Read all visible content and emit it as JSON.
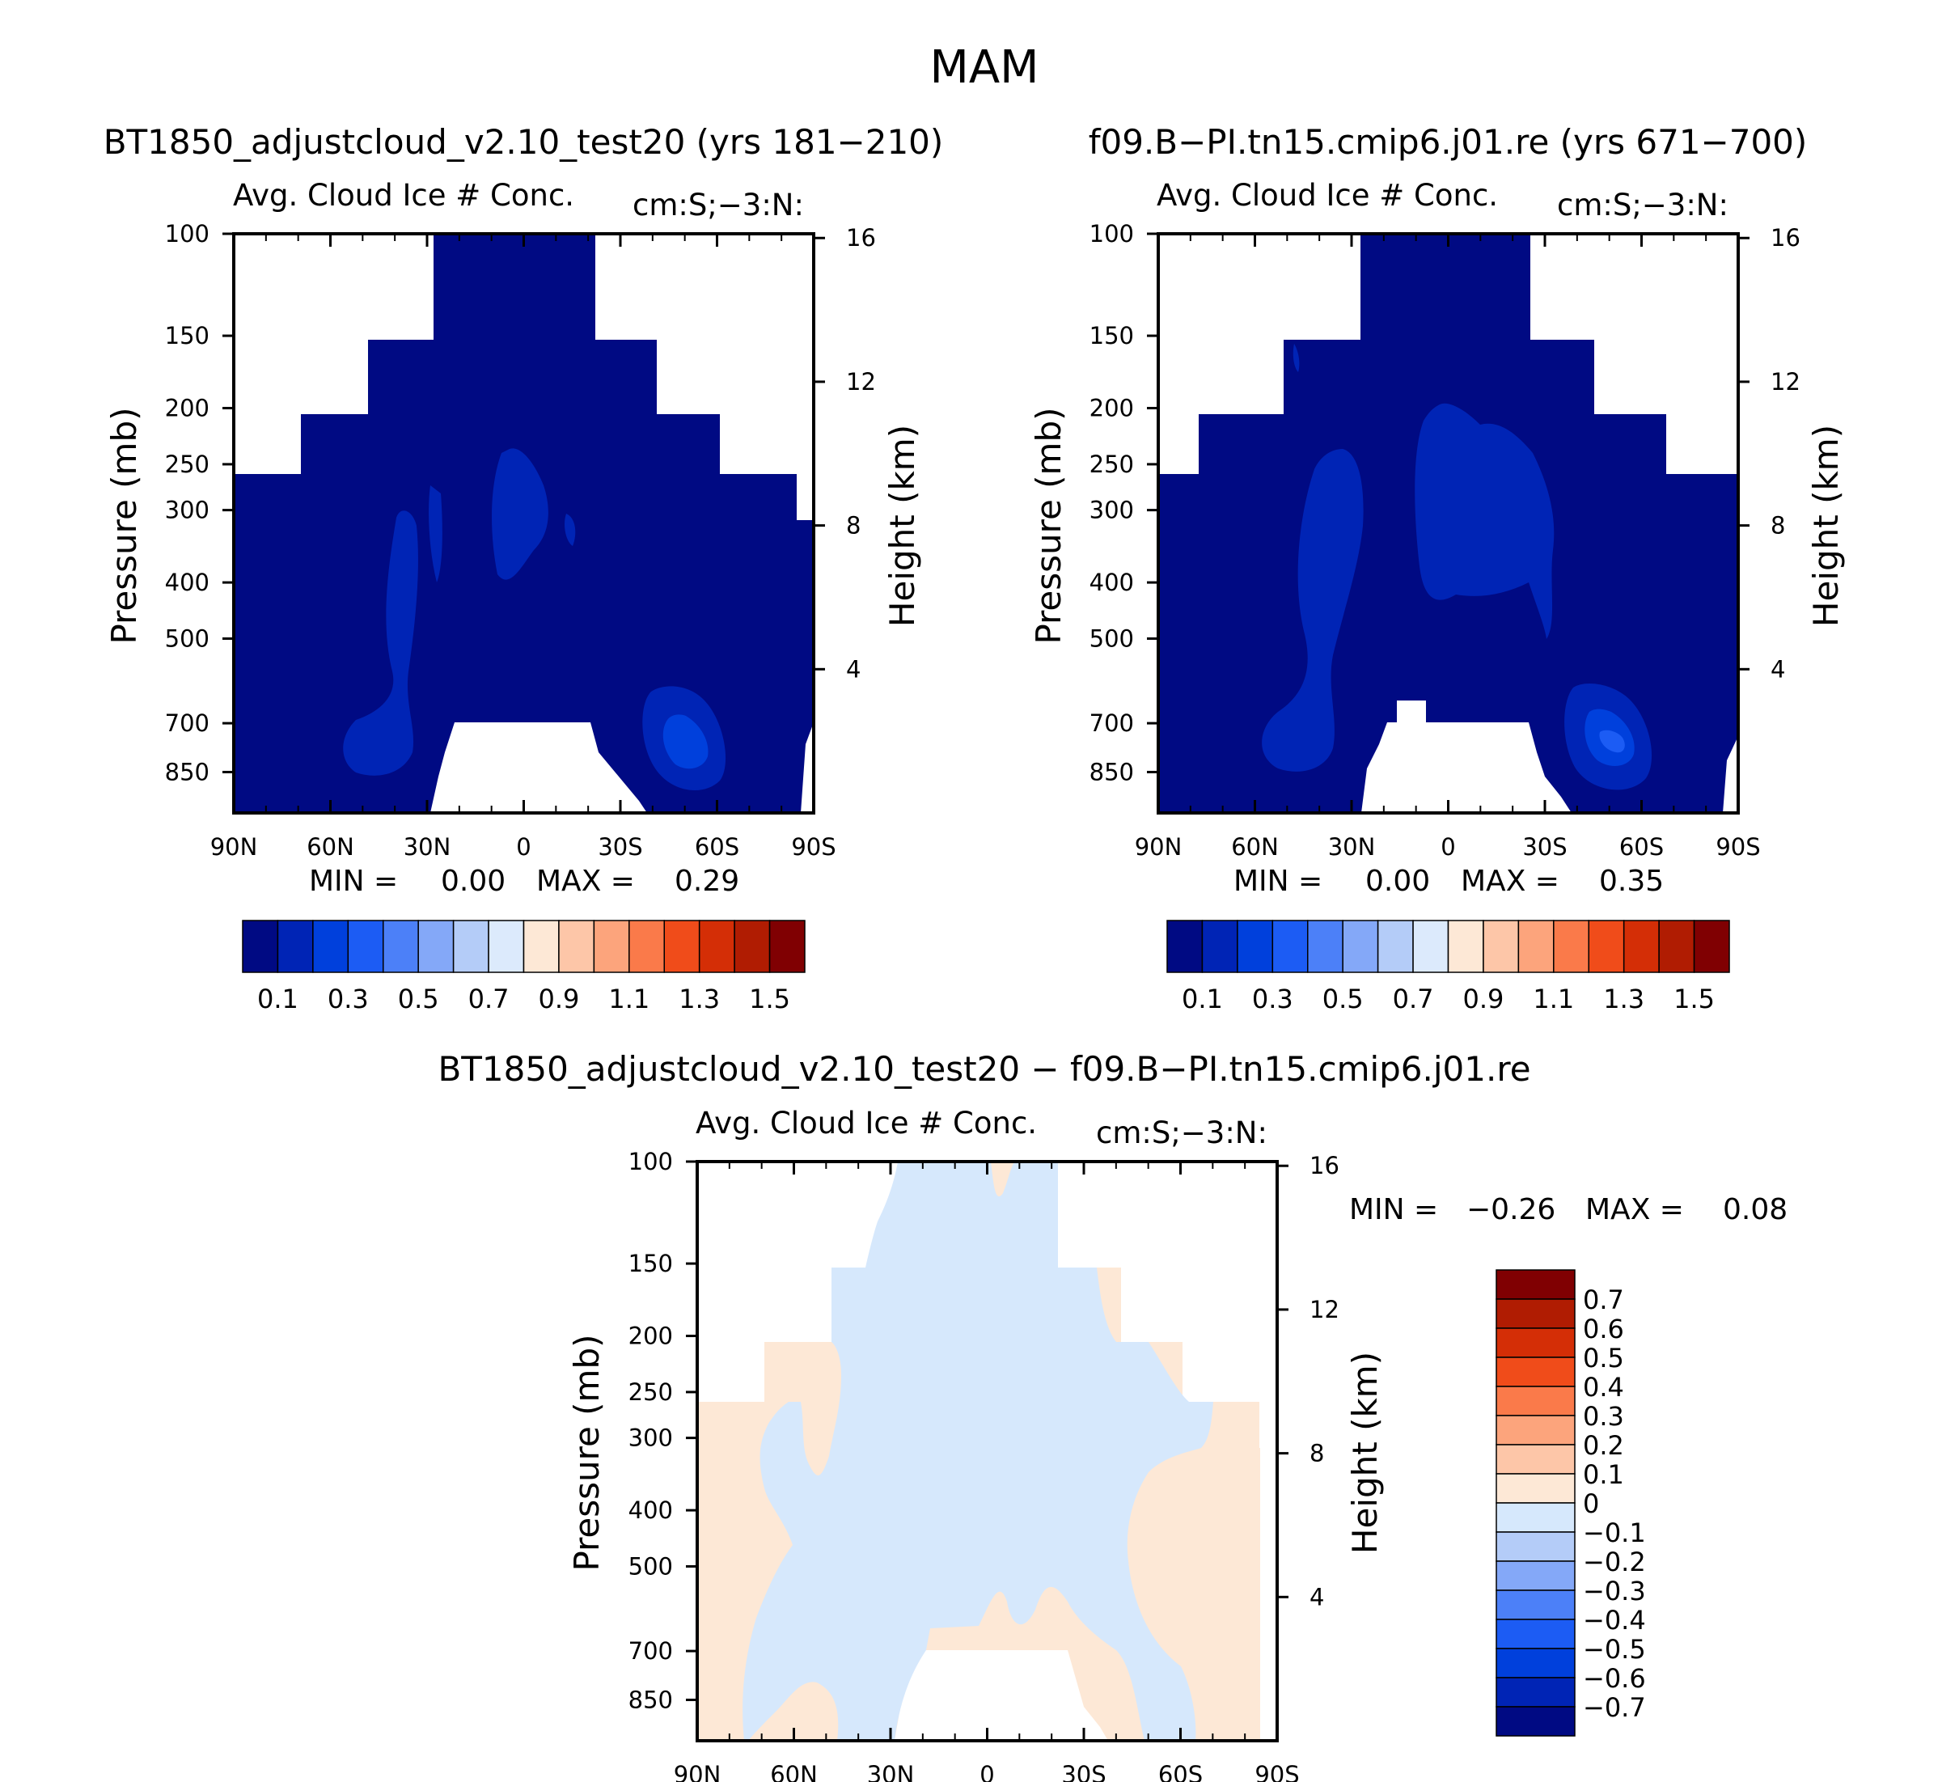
{
  "page": {
    "title": "MAM"
  },
  "palettes": {
    "abs": [
      "#000a83",
      "#0024b5",
      "#0040dc",
      "#1c5cf4",
      "#4c80f8",
      "#84a8f8",
      "#b4ccf8",
      "#dceafc",
      "#fde8d6",
      "#fdc6a8",
      "#fca47c",
      "#fa7a4a",
      "#f04c1a",
      "#d42e06",
      "#b01c02",
      "#800002"
    ],
    "diff": [
      "#000a83",
      "#0024b5",
      "#0040dc",
      "#1c5cf4",
      "#4c80f8",
      "#84a8f8",
      "#b4ccf8",
      "#d6e8fc",
      "#fde8d6",
      "#fdc6a8",
      "#fca47c",
      "#fa7a4a",
      "#f04c1a",
      "#d42e06",
      "#b01c02",
      "#800002"
    ]
  },
  "chart_data": [
    {
      "type": "heatmap",
      "title": "BT1850_adjustcloud_v2.10_test20 (yrs 181−210)",
      "subtitle_left": "Avg. Cloud Ice # Conc.",
      "subtitle_right": "cm:S;−3:N:",
      "ylabel": "Pressure (mb)",
      "y2label": "Height (km)",
      "x_ticks": [
        "90N",
        "60N",
        "30N",
        "0",
        "30S",
        "60S",
        "90S"
      ],
      "y_ticks": [
        "100",
        "150",
        "200",
        "250",
        "300",
        "400",
        "500",
        "700",
        "850"
      ],
      "y2_ticks": [
        "16",
        "12",
        "8",
        "4"
      ],
      "ylim": [
        100,
        1000
      ],
      "min_label": "MIN =",
      "min_value": "0.00",
      "max_label": "MAX =",
      "max_value": "0.29",
      "levels_step": 0.1,
      "colorbar_labels": [
        "0.1",
        "0.3",
        "0.5",
        "0.7",
        "0.9",
        "1.1",
        "1.3",
        "1.5"
      ]
    },
    {
      "type": "heatmap",
      "title": "f09.B−PI.tn15.cmip6.j01.re (yrs 671−700)",
      "subtitle_left": "Avg. Cloud Ice # Conc.",
      "subtitle_right": "cm:S;−3:N:",
      "ylabel": "Pressure (mb)",
      "y2label": "Height (km)",
      "x_ticks": [
        "90N",
        "60N",
        "30N",
        "0",
        "30S",
        "60S",
        "90S"
      ],
      "y_ticks": [
        "100",
        "150",
        "200",
        "250",
        "300",
        "400",
        "500",
        "700",
        "850"
      ],
      "y2_ticks": [
        "16",
        "12",
        "8",
        "4"
      ],
      "ylim": [
        100,
        1000
      ],
      "min_label": "MIN =",
      "min_value": "0.00",
      "max_label": "MAX =",
      "max_value": "0.35",
      "levels_step": 0.1,
      "colorbar_labels": [
        "0.1",
        "0.3",
        "0.5",
        "0.7",
        "0.9",
        "1.1",
        "1.3",
        "1.5"
      ]
    },
    {
      "type": "heatmap",
      "title": "BT1850_adjustcloud_v2.10_test20 − f09.B−PI.tn15.cmip6.j01.re",
      "subtitle_left": "Avg. Cloud Ice # Conc.",
      "subtitle_right": "cm:S;−3:N:",
      "ylabel": "Pressure (mb)",
      "y2label": "Height (km)",
      "x_ticks": [
        "90N",
        "60N",
        "30N",
        "0",
        "30S",
        "60S",
        "90S"
      ],
      "y_ticks": [
        "100",
        "150",
        "200",
        "250",
        "300",
        "400",
        "500",
        "700",
        "850"
      ],
      "y2_ticks": [
        "16",
        "12",
        "8",
        "4"
      ],
      "ylim": [
        100,
        1000
      ],
      "min_label": "MIN =",
      "min_value": "−0.26",
      "max_label": "MAX =",
      "max_value": "0.08",
      "levels_step": 0.1,
      "colorbar_labels": [
        "0.7",
        "0.6",
        "0.5",
        "0.4",
        "0.3",
        "0.2",
        "0.1",
        "0",
        "−0.1",
        "−0.2",
        "−0.3",
        "−0.4",
        "−0.5",
        "−0.6",
        "−0.7"
      ]
    }
  ]
}
